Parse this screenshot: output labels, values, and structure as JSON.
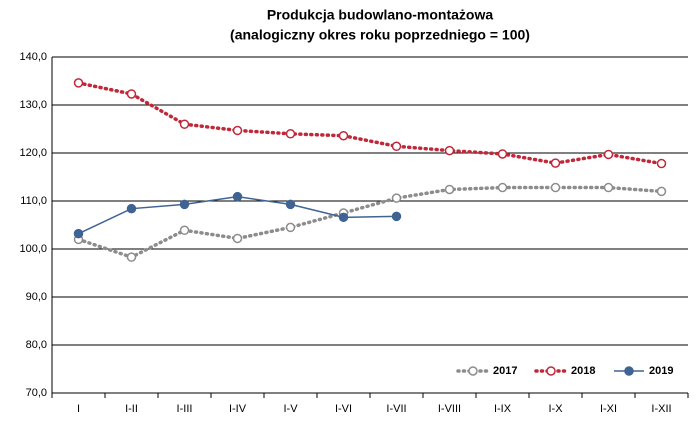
{
  "chart_data": {
    "type": "line",
    "title": "Produkcja budowlano-montażowa",
    "subtitle": "(analogiczny okres roku poprzedniego = 100)",
    "categories": [
      "I",
      "I-II",
      "I-III",
      "I-IV",
      "I-V",
      "I-VI",
      "I-VII",
      "I-VIII",
      "I-IX",
      "I-X",
      "I-XI",
      "I-XII"
    ],
    "ylim": [
      70,
      140
    ],
    "yticks": [
      {
        "value": 70,
        "label": "70,0"
      },
      {
        "value": 80,
        "label": "80,0"
      },
      {
        "value": 90,
        "label": "90,0"
      },
      {
        "value": 100,
        "label": "100,0"
      },
      {
        "value": 110,
        "label": "110,0"
      },
      {
        "value": 120,
        "label": "120,0"
      },
      {
        "value": 130,
        "label": "130,0"
      },
      {
        "value": 140,
        "label": "140,0"
      }
    ],
    "grid": true,
    "legend": "bottom-right",
    "series": [
      {
        "name": "2017",
        "color": "#8c8c8c",
        "style": "dotted",
        "marker": "open",
        "values": [
          102.0,
          98.3,
          103.9,
          102.2,
          104.5,
          107.5,
          110.6,
          112.4,
          112.8,
          112.8,
          112.8,
          112.0
        ]
      },
      {
        "name": "2018",
        "color": "#c0283a",
        "style": "dotted",
        "marker": "open",
        "values": [
          134.6,
          132.3,
          126.0,
          124.7,
          124.0,
          123.6,
          121.4,
          120.5,
          119.8,
          117.9,
          119.7,
          117.8
        ]
      },
      {
        "name": "2019",
        "color": "#3f6393",
        "style": "solid",
        "marker": "filled",
        "values": [
          103.2,
          108.4,
          109.3,
          110.9,
          109.3,
          106.6,
          106.8,
          null,
          null,
          null,
          null,
          null
        ]
      }
    ]
  }
}
